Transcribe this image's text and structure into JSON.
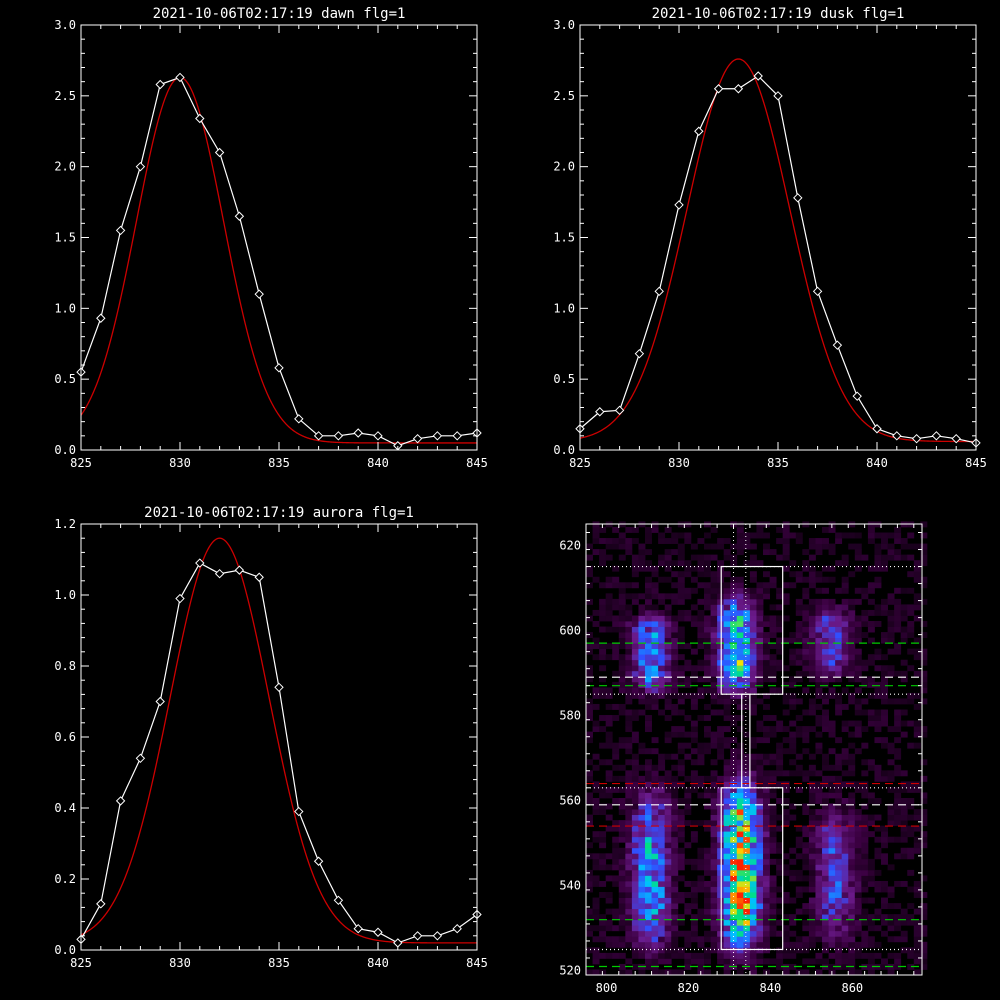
{
  "chart_data": [
    {
      "type": "line",
      "title": "2021-10-06T02:17:19 dawn flg=1",
      "xlim": [
        825,
        845
      ],
      "ylim": [
        0.0,
        3.0
      ],
      "xticks": [
        825,
        830,
        835,
        840,
        845
      ],
      "xtick_labels": [
        "825",
        "830",
        "835",
        "840",
        "845"
      ],
      "yticks": [
        0.0,
        0.5,
        1.0,
        1.5,
        2.0,
        2.5,
        3.0
      ],
      "ytick_labels": [
        "0.0",
        "0.5",
        "1.0",
        "1.5",
        "2.0",
        "2.5",
        "3.0"
      ],
      "series": [
        {
          "kind": "observed",
          "color": "#ffffff",
          "marker": "diamond",
          "x": [
            825,
            826,
            827,
            828,
            829,
            830,
            831,
            832,
            833,
            834,
            835,
            836,
            837,
            838,
            839,
            840,
            841,
            842,
            843,
            844,
            845
          ],
          "y": [
            0.55,
            0.93,
            1.55,
            2.0,
            2.58,
            2.63,
            2.34,
            2.1,
            1.65,
            1.1,
            0.58,
            0.22,
            0.1,
            0.1,
            0.12,
            0.1,
            0.03,
            0.08,
            0.1,
            0.1,
            0.12
          ]
        },
        {
          "kind": "fit",
          "color": "#cc0000",
          "gaussian": {
            "amp": 2.58,
            "center": 830.0,
            "sigma": 2.2,
            "offset": 0.05
          }
        }
      ]
    },
    {
      "type": "line",
      "title": "2021-10-06T02:17:19 dusk flg=1",
      "xlim": [
        825,
        845
      ],
      "ylim": [
        0.0,
        3.0
      ],
      "xticks": [
        825,
        830,
        835,
        840,
        845
      ],
      "xtick_labels": [
        "825",
        "830",
        "835",
        "840",
        "845"
      ],
      "yticks": [
        0.0,
        0.5,
        1.0,
        1.5,
        2.0,
        2.5,
        3.0
      ],
      "ytick_labels": [
        "0.0",
        "0.5",
        "1.0",
        "1.5",
        "2.0",
        "2.5",
        "3.0"
      ],
      "series": [
        {
          "kind": "observed",
          "color": "#ffffff",
          "marker": "diamond",
          "x": [
            825,
            826,
            827,
            828,
            829,
            830,
            831,
            832,
            833,
            834,
            835,
            836,
            837,
            838,
            839,
            840,
            841,
            842,
            843,
            844,
            845
          ],
          "y": [
            0.15,
            0.27,
            0.28,
            0.68,
            1.12,
            1.73,
            2.25,
            2.55,
            2.55,
            2.64,
            2.5,
            1.78,
            1.12,
            0.74,
            0.38,
            0.15,
            0.1,
            0.08,
            0.1,
            0.08,
            0.05
          ]
        },
        {
          "kind": "fit",
          "color": "#cc0000",
          "gaussian": {
            "amp": 2.7,
            "center": 833.0,
            "sigma": 2.6,
            "offset": 0.06
          }
        }
      ]
    },
    {
      "type": "line",
      "title": "2021-10-06T02:17:19 aurora flg=1",
      "xlim": [
        825,
        845
      ],
      "ylim": [
        0.0,
        1.2
      ],
      "xticks": [
        825,
        830,
        835,
        840,
        845
      ],
      "xtick_labels": [
        "825",
        "830",
        "835",
        "840",
        "845"
      ],
      "yticks": [
        0.0,
        0.2,
        0.4,
        0.6,
        0.8,
        1.0,
        1.2
      ],
      "ytick_labels": [
        "0.0",
        "0.2",
        "0.4",
        "0.6",
        "0.8",
        "1.0",
        "1.2"
      ],
      "series": [
        {
          "kind": "observed",
          "color": "#ffffff",
          "marker": "diamond",
          "x": [
            825,
            826,
            827,
            828,
            829,
            830,
            831,
            832,
            833,
            834,
            835,
            836,
            837,
            838,
            839,
            840,
            841,
            842,
            843,
            844,
            845
          ],
          "y": [
            0.03,
            0.13,
            0.42,
            0.54,
            0.7,
            0.99,
            1.09,
            1.06,
            1.07,
            1.05,
            0.74,
            0.39,
            0.25,
            0.14,
            0.06,
            0.05,
            0.02,
            0.04,
            0.04,
            0.06,
            0.1
          ]
        },
        {
          "kind": "fit",
          "color": "#cc0000",
          "gaussian": {
            "amp": 1.14,
            "center": 832.0,
            "sigma": 2.5,
            "offset": 0.02
          }
        }
      ]
    },
    {
      "type": "heatmap",
      "title": "",
      "xlim": [
        795,
        877
      ],
      "ylim": [
        519,
        625
      ],
      "xticks": [
        800,
        820,
        840,
        860
      ],
      "xtick_labels": [
        "800",
        "820",
        "840",
        "860"
      ],
      "yticks": [
        520,
        540,
        560,
        580,
        600,
        620
      ],
      "ytick_labels": [
        "520",
        "540",
        "560",
        "580",
        "600",
        "620"
      ],
      "colormap": [
        "#000000",
        "#3a0040",
        "#6a1a8a",
        "#3050ff",
        "#00c0ff",
        "#00e080",
        "#ffe000",
        "#ff2000"
      ],
      "spectral_blobs": [
        {
          "x": 810,
          "y_range": [
            586,
            602
          ],
          "intensity": 0.5
        },
        {
          "x": 810,
          "y_range": [
            526,
            560
          ],
          "intensity": 0.55
        },
        {
          "x": 831,
          "y_range": [
            586,
            606
          ],
          "intensity": 0.7
        },
        {
          "x": 832,
          "y_range": [
            526,
            562
          ],
          "intensity": 0.95
        },
        {
          "x": 854,
          "y_range": [
            590,
            604
          ],
          "intensity": 0.35
        },
        {
          "x": 855,
          "y_range": [
            528,
            556
          ],
          "intensity": 0.4
        }
      ],
      "boxes": [
        {
          "x_range": [
            828,
            843
          ],
          "y_range": [
            585,
            615
          ]
        },
        {
          "x_range": [
            833,
            835
          ],
          "y_range": [
            563,
            585
          ]
        },
        {
          "x_range": [
            828,
            843
          ],
          "y_range": [
            525,
            563
          ]
        }
      ],
      "vertical_dotted_x": [
        831,
        834
      ],
      "horizontal_lines": [
        {
          "y": 615,
          "style": "dotted",
          "color": "#ffffff"
        },
        {
          "y": 597,
          "style": "dashed",
          "color": "#00cc00"
        },
        {
          "y": 589,
          "style": "dashed",
          "color": "#ffffff"
        },
        {
          "y": 587,
          "style": "dashed",
          "color": "#00cc00"
        },
        {
          "y": 585,
          "style": "dotted",
          "color": "#ffffff"
        },
        {
          "y": 564,
          "style": "dashed",
          "color": "#cc0000"
        },
        {
          "y": 563,
          "style": "dotted",
          "color": "#ffffff"
        },
        {
          "y": 559,
          "style": "dashed",
          "color": "#ffffff"
        },
        {
          "y": 554,
          "style": "dashed",
          "color": "#cc0000"
        },
        {
          "y": 532,
          "style": "dashed",
          "color": "#00cc00"
        },
        {
          "y": 525,
          "style": "dotted",
          "color": "#ffffff"
        },
        {
          "y": 521,
          "style": "dashed",
          "color": "#00cc00"
        }
      ]
    }
  ]
}
